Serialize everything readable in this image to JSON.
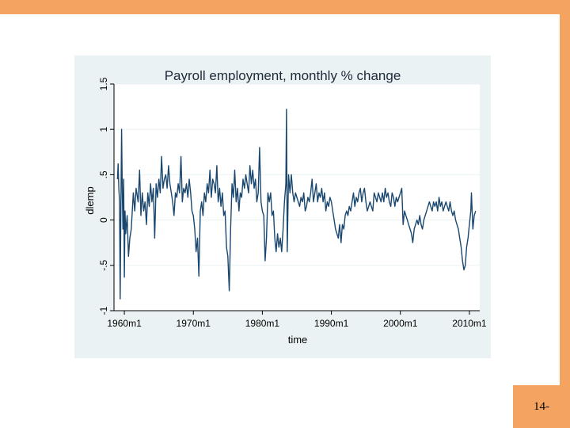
{
  "slide": {
    "number": "14-"
  },
  "colors": {
    "accent": "#f4a460",
    "chart_bg": "#eaf2f3",
    "line": "#1a476f",
    "grid": "#eaf2f3"
  },
  "chart_data": {
    "type": "line",
    "title": "Payroll employment, monthly % change",
    "xlabel": "time",
    "ylabel": "dlemp",
    "xlim": [
      1958.5,
      2011.5
    ],
    "ylim": [
      -1,
      1.5
    ],
    "x_ticks": [
      {
        "value": 1960,
        "label": "1960m1"
      },
      {
        "value": 1970,
        "label": "1970m1"
      },
      {
        "value": 1980,
        "label": "1980m1"
      },
      {
        "value": 1990,
        "label": "1990m1"
      },
      {
        "value": 2000,
        "label": "2000m1"
      },
      {
        "value": 2010,
        "label": "2010m1"
      }
    ],
    "y_ticks": [
      {
        "value": -1,
        "label": "-1"
      },
      {
        "value": -0.5,
        "label": "-.5"
      },
      {
        "value": 0,
        "label": "0"
      },
      {
        "value": 0.5,
        "label": ".5"
      },
      {
        "value": 1,
        "label": "1"
      },
      {
        "value": 1.5,
        "label": "1.5"
      }
    ],
    "series": [
      {
        "name": "dlemp",
        "points": [
          [
            1959.0,
            0.45
          ],
          [
            1959.1,
            0.62
          ],
          [
            1959.2,
            0.35
          ],
          [
            1959.3,
            0.2
          ],
          [
            1959.4,
            -0.87
          ],
          [
            1959.5,
            0.15
          ],
          [
            1959.6,
            1.0
          ],
          [
            1959.7,
            0.3
          ],
          [
            1959.8,
            -0.1
          ],
          [
            1959.9,
            0.45
          ],
          [
            1960.0,
            -0.63
          ],
          [
            1960.1,
            0.1
          ],
          [
            1960.2,
            -0.15
          ],
          [
            1960.4,
            0.05
          ],
          [
            1960.6,
            -0.4
          ],
          [
            1960.8,
            -0.2
          ],
          [
            1961.0,
            -0.1
          ],
          [
            1961.3,
            0.3
          ],
          [
            1961.5,
            0.1
          ],
          [
            1961.7,
            0.35
          ],
          [
            1962.0,
            0.2
          ],
          [
            1962.2,
            0.55
          ],
          [
            1962.4,
            0.05
          ],
          [
            1962.6,
            0.3
          ],
          [
            1962.8,
            0.1
          ],
          [
            1963.0,
            0.2
          ],
          [
            1963.2,
            -0.05
          ],
          [
            1963.4,
            0.3
          ],
          [
            1963.6,
            0.15
          ],
          [
            1963.8,
            0.4
          ],
          [
            1964.0,
            0.2
          ],
          [
            1964.2,
            0.35
          ],
          [
            1964.4,
            -0.2
          ],
          [
            1964.6,
            0.4
          ],
          [
            1964.8,
            0.25
          ],
          [
            1965.0,
            0.45
          ],
          [
            1965.2,
            0.3
          ],
          [
            1965.4,
            0.7
          ],
          [
            1965.6,
            0.35
          ],
          [
            1965.8,
            0.45
          ],
          [
            1966.0,
            0.5
          ],
          [
            1966.2,
            0.35
          ],
          [
            1966.4,
            0.6
          ],
          [
            1966.6,
            0.4
          ],
          [
            1966.8,
            0.3
          ],
          [
            1967.0,
            0.2
          ],
          [
            1967.2,
            0.05
          ],
          [
            1967.4,
            0.3
          ],
          [
            1967.6,
            0.25
          ],
          [
            1967.8,
            0.4
          ],
          [
            1968.0,
            0.3
          ],
          [
            1968.2,
            0.7
          ],
          [
            1968.4,
            0.2
          ],
          [
            1968.6,
            0.35
          ],
          [
            1968.8,
            0.3
          ],
          [
            1969.0,
            0.4
          ],
          [
            1969.2,
            0.25
          ],
          [
            1969.4,
            0.45
          ],
          [
            1969.6,
            0.3
          ],
          [
            1969.8,
            0.1
          ],
          [
            1970.0,
            0.05
          ],
          [
            1970.2,
            -0.1
          ],
          [
            1970.4,
            -0.35
          ],
          [
            1970.6,
            -0.2
          ],
          [
            1970.8,
            -0.62
          ],
          [
            1971.0,
            0.1
          ],
          [
            1971.2,
            0.2
          ],
          [
            1971.4,
            0.05
          ],
          [
            1971.6,
            0.3
          ],
          [
            1971.8,
            0.2
          ],
          [
            1972.0,
            0.4
          ],
          [
            1972.2,
            0.3
          ],
          [
            1972.4,
            0.55
          ],
          [
            1972.6,
            0.25
          ],
          [
            1972.8,
            0.45
          ],
          [
            1973.0,
            0.4
          ],
          [
            1973.2,
            0.3
          ],
          [
            1973.4,
            0.6
          ],
          [
            1973.6,
            0.2
          ],
          [
            1973.8,
            0.35
          ],
          [
            1974.0,
            0.15
          ],
          [
            1974.2,
            0.3
          ],
          [
            1974.4,
            0.05
          ],
          [
            1974.6,
            0.1
          ],
          [
            1974.8,
            -0.3
          ],
          [
            1975.0,
            -0.4
          ],
          [
            1975.2,
            -0.78
          ],
          [
            1975.4,
            -0.1
          ],
          [
            1975.6,
            0.4
          ],
          [
            1975.8,
            0.25
          ],
          [
            1976.0,
            0.55
          ],
          [
            1976.2,
            0.2
          ],
          [
            1976.4,
            0.35
          ],
          [
            1976.6,
            0.1
          ],
          [
            1976.8,
            0.3
          ],
          [
            1977.0,
            0.25
          ],
          [
            1977.2,
            0.45
          ],
          [
            1977.4,
            0.35
          ],
          [
            1977.6,
            0.5
          ],
          [
            1977.8,
            0.4
          ],
          [
            1978.0,
            0.3
          ],
          [
            1978.2,
            0.6
          ],
          [
            1978.4,
            0.4
          ],
          [
            1978.6,
            0.55
          ],
          [
            1978.8,
            0.35
          ],
          [
            1979.0,
            0.45
          ],
          [
            1979.2,
            0.2
          ],
          [
            1979.4,
            0.3
          ],
          [
            1979.6,
            0.8
          ],
          [
            1979.8,
            0.2
          ],
          [
            1980.0,
            0.1
          ],
          [
            1980.2,
            0.05
          ],
          [
            1980.4,
            -0.45
          ],
          [
            1980.6,
            -0.2
          ],
          [
            1980.8,
            0.3
          ],
          [
            1981.0,
            0.2
          ],
          [
            1981.2,
            0.3
          ],
          [
            1981.4,
            0.05
          ],
          [
            1981.6,
            0.1
          ],
          [
            1981.8,
            -0.2
          ],
          [
            1982.0,
            -0.35
          ],
          [
            1982.2,
            -0.15
          ],
          [
            1982.4,
            -0.3
          ],
          [
            1982.6,
            -0.2
          ],
          [
            1982.8,
            -0.35
          ],
          [
            1983.0,
            -0.1
          ],
          [
            1983.2,
            0.2
          ],
          [
            1983.4,
            0.4
          ],
          [
            1983.5,
            1.22
          ],
          [
            1983.6,
            -0.35
          ],
          [
            1983.8,
            0.5
          ],
          [
            1984.0,
            0.3
          ],
          [
            1984.2,
            0.5
          ],
          [
            1984.4,
            0.3
          ],
          [
            1984.6,
            0.2
          ],
          [
            1984.8,
            0.3
          ],
          [
            1985.0,
            0.25
          ],
          [
            1985.2,
            0.2
          ],
          [
            1985.4,
            0.15
          ],
          [
            1985.6,
            0.25
          ],
          [
            1985.8,
            0.2
          ],
          [
            1986.0,
            0.3
          ],
          [
            1986.2,
            0.1
          ],
          [
            1986.4,
            0.15
          ],
          [
            1986.6,
            0.25
          ],
          [
            1986.8,
            0.2
          ],
          [
            1987.0,
            0.3
          ],
          [
            1987.2,
            0.45
          ],
          [
            1987.4,
            0.2
          ],
          [
            1987.6,
            0.3
          ],
          [
            1987.8,
            0.4
          ],
          [
            1988.0,
            0.2
          ],
          [
            1988.2,
            0.3
          ],
          [
            1988.4,
            0.25
          ],
          [
            1988.6,
            0.35
          ],
          [
            1988.8,
            0.2
          ],
          [
            1989.0,
            0.3
          ],
          [
            1989.2,
            0.1
          ],
          [
            1989.4,
            0.2
          ],
          [
            1989.6,
            0.15
          ],
          [
            1989.8,
            0.25
          ],
          [
            1990.0,
            0.2
          ],
          [
            1990.2,
            0.1
          ],
          [
            1990.4,
            0.0
          ],
          [
            1990.6,
            -0.1
          ],
          [
            1990.8,
            -0.15
          ],
          [
            1991.0,
            -0.2
          ],
          [
            1991.2,
            -0.05
          ],
          [
            1991.4,
            -0.25
          ],
          [
            1991.6,
            -0.05
          ],
          [
            1991.8,
            -0.1
          ],
          [
            1992.0,
            0.05
          ],
          [
            1992.2,
            0.1
          ],
          [
            1992.4,
            0.05
          ],
          [
            1992.6,
            0.15
          ],
          [
            1992.8,
            0.1
          ],
          [
            1993.0,
            0.2
          ],
          [
            1993.2,
            0.3
          ],
          [
            1993.4,
            0.15
          ],
          [
            1993.6,
            0.25
          ],
          [
            1993.8,
            0.2
          ],
          [
            1994.0,
            0.3
          ],
          [
            1994.2,
            0.35
          ],
          [
            1994.4,
            0.2
          ],
          [
            1994.6,
            0.3
          ],
          [
            1994.8,
            0.35
          ],
          [
            1995.0,
            0.2
          ],
          [
            1995.2,
            0.1
          ],
          [
            1995.4,
            0.15
          ],
          [
            1995.6,
            0.2
          ],
          [
            1995.8,
            0.15
          ],
          [
            1996.0,
            0.1
          ],
          [
            1996.2,
            0.3
          ],
          [
            1996.4,
            0.25
          ],
          [
            1996.6,
            0.2
          ],
          [
            1996.8,
            0.3
          ],
          [
            1997.0,
            0.25
          ],
          [
            1997.2,
            0.2
          ],
          [
            1997.4,
            0.3
          ],
          [
            1997.6,
            0.2
          ],
          [
            1997.8,
            0.35
          ],
          [
            1998.0,
            0.25
          ],
          [
            1998.2,
            0.3
          ],
          [
            1998.4,
            0.2
          ],
          [
            1998.6,
            0.15
          ],
          [
            1998.8,
            0.3
          ],
          [
            1999.0,
            0.25
          ],
          [
            1999.2,
            0.15
          ],
          [
            1999.4,
            0.25
          ],
          [
            1999.6,
            0.2
          ],
          [
            1999.8,
            0.25
          ],
          [
            2000.0,
            0.3
          ],
          [
            2000.2,
            0.35
          ],
          [
            2000.4,
            -0.05
          ],
          [
            2000.6,
            0.1
          ],
          [
            2000.8,
            0.05
          ],
          [
            2001.0,
            0.0
          ],
          [
            2001.2,
            -0.05
          ],
          [
            2001.4,
            -0.1
          ],
          [
            2001.6,
            -0.15
          ],
          [
            2001.8,
            -0.25
          ],
          [
            2002.0,
            -0.1
          ],
          [
            2002.2,
            -0.05
          ],
          [
            2002.4,
            0.0
          ],
          [
            2002.6,
            -0.05
          ],
          [
            2002.8,
            0.05
          ],
          [
            2003.0,
            -0.05
          ],
          [
            2003.2,
            -0.1
          ],
          [
            2003.4,
            0.0
          ],
          [
            2003.6,
            0.05
          ],
          [
            2003.8,
            0.1
          ],
          [
            2004.0,
            0.15
          ],
          [
            2004.2,
            0.2
          ],
          [
            2004.4,
            0.15
          ],
          [
            2004.6,
            0.1
          ],
          [
            2004.8,
            0.2
          ],
          [
            2005.0,
            0.15
          ],
          [
            2005.2,
            0.2
          ],
          [
            2005.4,
            0.1
          ],
          [
            2005.6,
            0.25
          ],
          [
            2005.8,
            0.15
          ],
          [
            2006.0,
            0.2
          ],
          [
            2006.2,
            0.1
          ],
          [
            2006.4,
            0.15
          ],
          [
            2006.6,
            0.2
          ],
          [
            2006.8,
            0.15
          ],
          [
            2007.0,
            0.1
          ],
          [
            2007.2,
            0.2
          ],
          [
            2007.4,
            0.1
          ],
          [
            2007.6,
            0.05
          ],
          [
            2007.8,
            0.1
          ],
          [
            2008.0,
            0.0
          ],
          [
            2008.2,
            -0.05
          ],
          [
            2008.4,
            -0.1
          ],
          [
            2008.6,
            -0.2
          ],
          [
            2008.8,
            -0.3
          ],
          [
            2009.0,
            -0.45
          ],
          [
            2009.2,
            -0.55
          ],
          [
            2009.4,
            -0.5
          ],
          [
            2009.6,
            -0.3
          ],
          [
            2009.8,
            -0.2
          ],
          [
            2010.0,
            -0.05
          ],
          [
            2010.2,
            0.1
          ],
          [
            2010.3,
            0.3
          ],
          [
            2010.5,
            -0.1
          ],
          [
            2010.7,
            0.05
          ],
          [
            2010.9,
            0.1
          ]
        ]
      }
    ]
  }
}
